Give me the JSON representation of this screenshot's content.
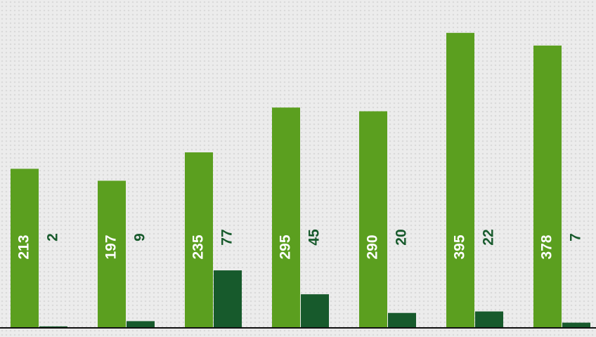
{
  "chart_data": {
    "type": "bar",
    "categories": [
      null,
      null,
      null,
      null,
      null,
      null,
      null
    ],
    "series": [
      {
        "color": "#5b9f1f",
        "values": [
          213,
          197,
          235,
          295,
          290,
          395,
          378
        ]
      },
      {
        "color": "#175a2c",
        "values": [
          2,
          9,
          77,
          45,
          20,
          22,
          7
        ]
      }
    ],
    "ylim": [
      0,
      439
    ]
  }
}
